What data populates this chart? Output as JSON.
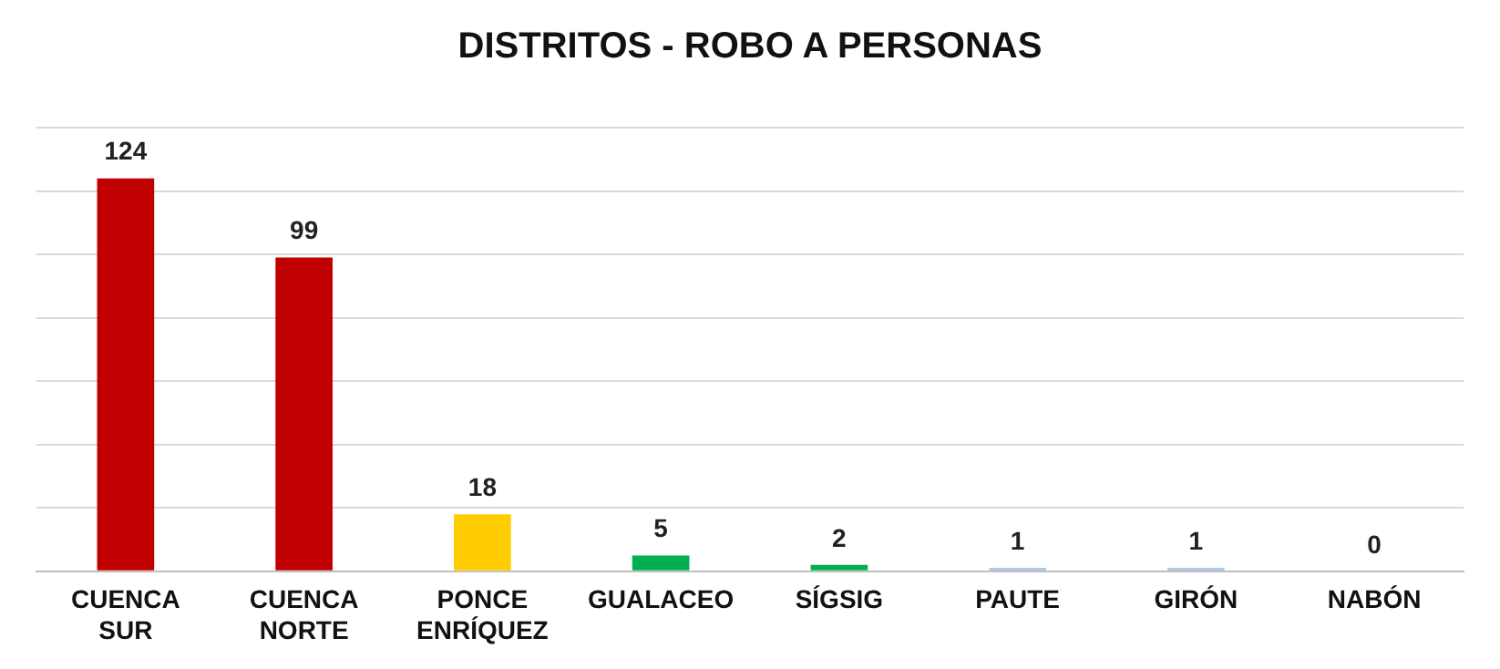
{
  "chart_data": {
    "type": "bar",
    "title": "DISTRITOS - ROBO A PERSONAS",
    "categories": [
      "CUENCA SUR",
      "CUENCA NORTE",
      "PONCE ENRÍQUEZ",
      "GUALACEO",
      "SÍGSIG",
      "PAUTE",
      "GIRÓN",
      "NABÓN"
    ],
    "values": [
      124,
      99,
      18,
      5,
      2,
      1,
      1,
      0
    ],
    "colors": [
      "#c00000",
      "#c00000",
      "#ffcc00",
      "#00b050",
      "#00b050",
      "#9dc3e6",
      "#9dc3e6",
      "#9dc3e6"
    ],
    "ylim": [
      0,
      140
    ],
    "yticks": [
      0,
      20,
      40,
      60,
      80,
      100,
      120,
      140
    ],
    "grid": "y",
    "tick_labels": "x",
    "data_labels": true
  }
}
